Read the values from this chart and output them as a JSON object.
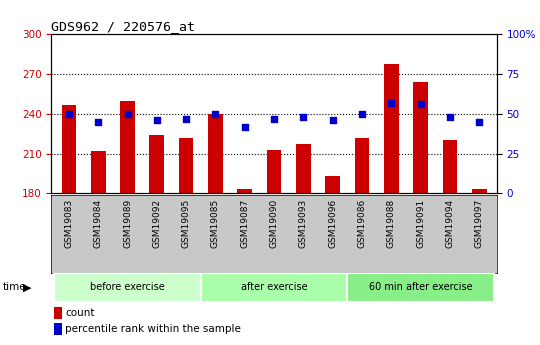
{
  "title": "GDS962 / 220576_at",
  "samples": [
    "GSM19083",
    "GSM19084",
    "GSM19089",
    "GSM19092",
    "GSM19095",
    "GSM19085",
    "GSM19087",
    "GSM19090",
    "GSM19093",
    "GSM19096",
    "GSM19086",
    "GSM19088",
    "GSM19091",
    "GSM19094",
    "GSM19097"
  ],
  "bar_values": [
    247,
    212,
    250,
    224,
    222,
    240,
    183,
    213,
    217,
    193,
    222,
    278,
    264,
    220,
    183
  ],
  "percentile_values": [
    50,
    45,
    50,
    46,
    47,
    50,
    42,
    47,
    48,
    46,
    50,
    57,
    56,
    48,
    45
  ],
  "groups": [
    {
      "label": "before exercise",
      "start": 0,
      "end": 5
    },
    {
      "label": "after exercise",
      "start": 5,
      "end": 10
    },
    {
      "label": "60 min after exercise",
      "start": 10,
      "end": 15
    }
  ],
  "group_colors": [
    "#ccffcc",
    "#aaffaa",
    "#88ee88"
  ],
  "ylim_left": [
    180,
    300
  ],
  "ylim_right": [
    0,
    100
  ],
  "yticks_left": [
    180,
    210,
    240,
    270,
    300
  ],
  "yticks_right": [
    0,
    25,
    50,
    75,
    100
  ],
  "bar_color": "#cc0000",
  "dot_color": "#0000cc",
  "bg_color": "#ffffff",
  "tick_color_left": "#cc0000",
  "tick_color_right": "#0000cc",
  "bar_width": 0.5,
  "xtick_bg": "#c8c8c8",
  "grid_yticks": [
    210,
    240,
    270
  ]
}
